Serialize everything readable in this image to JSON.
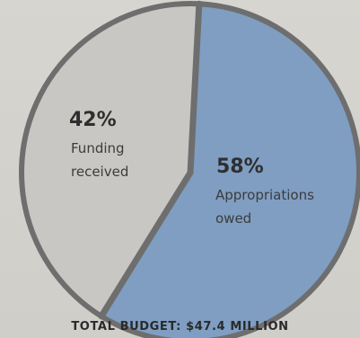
{
  "chart_data": {
    "type": "pie",
    "slices": [
      {
        "label": "Funding received",
        "value": 42,
        "value_label": "42%",
        "color": "#c9c7c3"
      },
      {
        "label": "Appropriations owed",
        "value": 58,
        "value_label": "58%",
        "color": "#7f9ec2"
      }
    ],
    "footer": "TOTAL BUDGET: $47.4 MILLION",
    "outline_color": "#6e6e6e"
  }
}
